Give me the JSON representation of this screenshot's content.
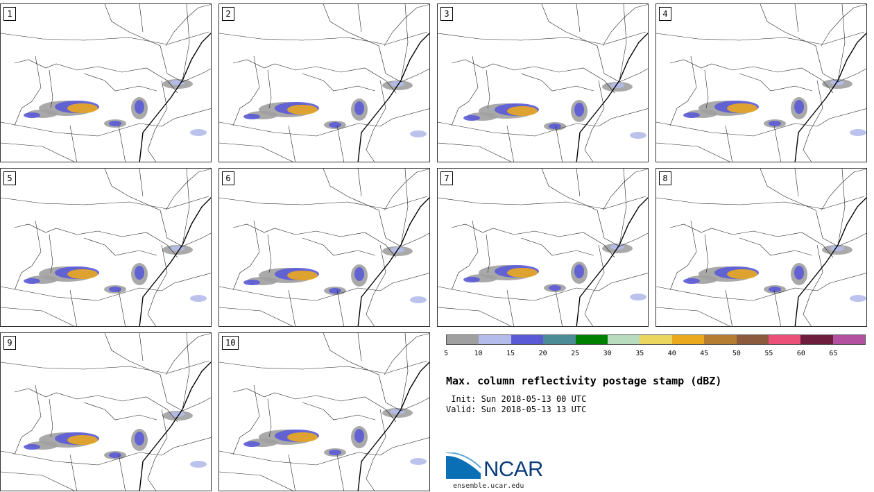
{
  "panels": [
    {
      "label": "1"
    },
    {
      "label": "2"
    },
    {
      "label": "3"
    },
    {
      "label": "4"
    },
    {
      "label": "5"
    },
    {
      "label": "6"
    },
    {
      "label": "7"
    },
    {
      "label": "8"
    },
    {
      "label": "9"
    },
    {
      "label": "10"
    }
  ],
  "colorbar": {
    "colors": [
      "#a0a0a0",
      "#b4bceb",
      "#5a5ad7",
      "#4c8c96",
      "#008000",
      "#b9dcbe",
      "#ebd75f",
      "#ebaa1e",
      "#b47d32",
      "#8c5a3c",
      "#eb5078",
      "#6e1e3c",
      "#b450a0"
    ],
    "ticks": [
      "5",
      "10",
      "15",
      "20",
      "25",
      "30",
      "35",
      "40",
      "45",
      "50",
      "55",
      "60",
      "65"
    ]
  },
  "title": "Max. column reflectivity postage stamp (dBZ)",
  "init_text": " Init: Sun 2018-05-13 00 UTC",
  "valid_text": "Valid: Sun 2018-05-13 13 UTC",
  "logo_text": "NCAR",
  "website": "ensemble.ucar.edu"
}
